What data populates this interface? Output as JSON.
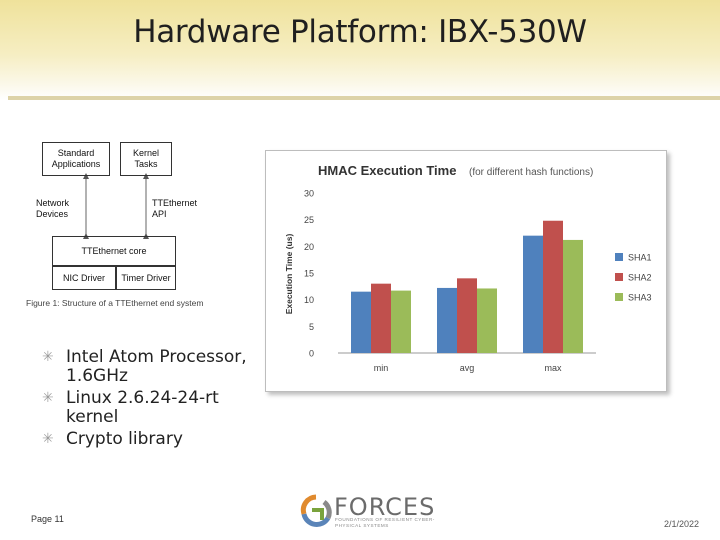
{
  "slide": {
    "title": "Hardware Platform: IBX-530W",
    "page_label": "Page 11",
    "date": "2/1/2022"
  },
  "diagram": {
    "boxes": {
      "standard_apps": "Standard Applications",
      "kernel_tasks": "Kernel Tasks",
      "tte_core": "TTEthernet core",
      "nic_driver": "NIC Driver",
      "timer_driver": "Timer Driver"
    },
    "labels": {
      "network_devices": "Network Devices",
      "tte_api": "TTEthernet API"
    },
    "caption": "Figure 1: Structure of a TTEthernet end system"
  },
  "bullets": [
    "Intel Atom Processor, 1.6GHz",
    "Linux 2.6.24-24-rt kernel",
    "Crypto library"
  ],
  "logo": {
    "word": "FORCES",
    "tagline": "FOUNDATIONS OF RESILIENT CYBER-PHYSICAL SYSTEMS"
  },
  "colors": {
    "SHA1": "#4f81bd",
    "SHA2": "#c0504d",
    "SHA3": "#9bbb59"
  },
  "chart_data": {
    "type": "bar",
    "title": "HMAC Execution Time",
    "subtitle": "(for different hash functions)",
    "ylabel": "Execution Time (us)",
    "xlabel": "",
    "categories": [
      "min",
      "avg",
      "max"
    ],
    "series": [
      {
        "name": "SHA1",
        "values": [
          11.5,
          12.2,
          22
        ]
      },
      {
        "name": "SHA2",
        "values": [
          13,
          14,
          24.8
        ]
      },
      {
        "name": "SHA3",
        "values": [
          11.7,
          12.1,
          21.2
        ]
      }
    ],
    "ylim": [
      0,
      30
    ],
    "yticks": [
      0,
      5,
      10,
      15,
      20,
      25,
      30
    ],
    "grid": false,
    "legend_position": "right"
  }
}
